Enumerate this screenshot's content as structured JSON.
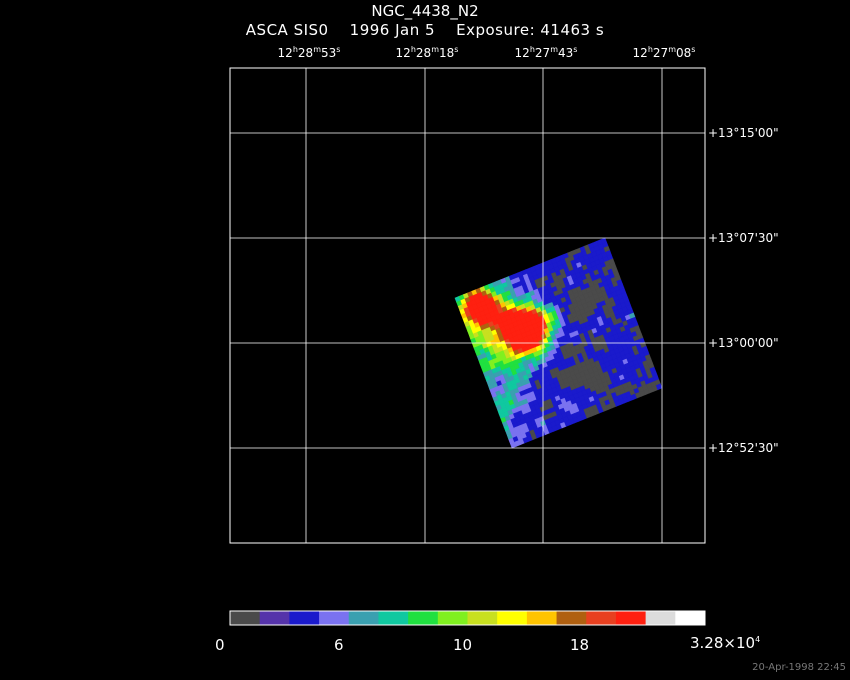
{
  "header": {
    "object": "NGC_4438_N2",
    "instrument": "ASCA SIS0",
    "date": "1996 Jan  5",
    "exposure": "Exposure: 41463 s"
  },
  "ra_ticks": [
    {
      "h": "12",
      "m": "28",
      "s": "53"
    },
    {
      "h": "12",
      "m": "28",
      "s": "18"
    },
    {
      "h": "12",
      "m": "27",
      "s": "43"
    },
    {
      "h": "12",
      "m": "27",
      "s": "08"
    }
  ],
  "dec_ticks": [
    "+13°15'00\"",
    "+13°07'30\"",
    "+13°00'00\"",
    "+12°52'30\""
  ],
  "colorbar": {
    "colors": [
      "#4a4a4a",
      "#5533aa",
      "#1a1acc",
      "#7a72f0",
      "#3aa0b0",
      "#10c8a0",
      "#20e040",
      "#80f020",
      "#c8e020",
      "#ffff00",
      "#ffc400",
      "#b06010",
      "#e84020",
      "#ff2010",
      "#dcdcdc",
      "#ffffff"
    ],
    "labels": [
      "0",
      "6",
      "10",
      "18",
      "3.28×10"
    ],
    "label_exp": "4"
  },
  "footer_stamp": "20-Apr-1998 22:45"
}
